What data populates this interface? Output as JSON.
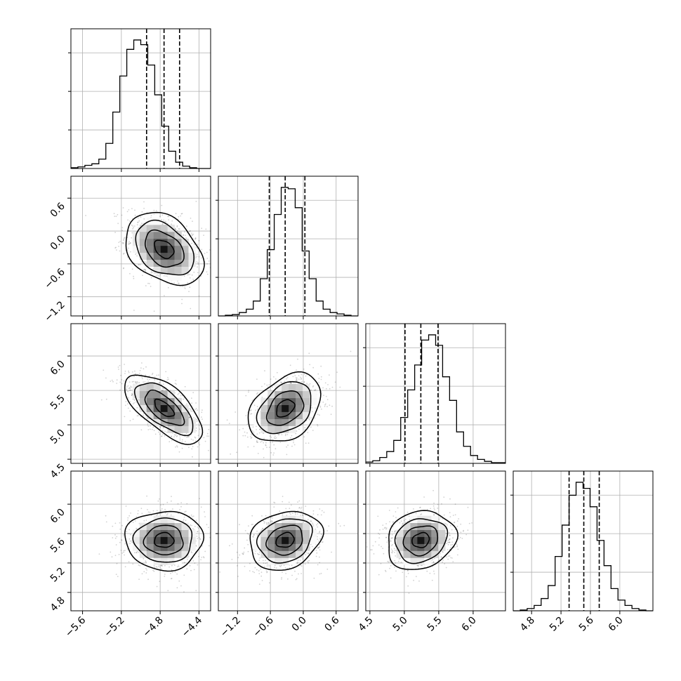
{
  "chart_data": {
    "type": "corner",
    "grid": true,
    "parameters": [
      {
        "index": 0,
        "range": [
          -5.72,
          -4.28
        ],
        "ticks": [
          -5.6,
          -5.2,
          -4.8,
          -4.4
        ],
        "tick_labels": [
          "−5.6",
          "−5.2",
          "−4.8",
          "−4.4"
        ],
        "mean": -4.76,
        "quantiles": [
          -4.94,
          -4.76,
          -4.6
        ]
      },
      {
        "index": 1,
        "range": [
          -1.55,
          1.0
        ],
        "ticks": [
          -1.2,
          -0.6,
          0.0,
          0.6
        ],
        "tick_labels": [
          "−1.2",
          "−0.6",
          "0.0",
          "0.6"
        ],
        "mean": -0.33,
        "quantiles": [
          -0.62,
          -0.33,
          0.03
        ]
      },
      {
        "index": 2,
        "range": [
          4.44,
          6.47
        ],
        "ticks": [
          4.5,
          5.0,
          5.5,
          6.0
        ],
        "tick_labels": [
          "4.5",
          "5.0",
          "5.5",
          "6.0"
        ],
        "mean": 5.24,
        "quantiles": [
          5.01,
          5.24,
          5.49
        ]
      },
      {
        "index": 3,
        "range": [
          4.55,
          6.45
        ],
        "ticks": [
          4.8,
          5.2,
          5.6,
          6.0
        ],
        "tick_labels": [
          "4.8",
          "5.2",
          "5.6",
          "6.0"
        ],
        "mean": 5.51,
        "quantiles": [
          5.31,
          5.51,
          5.72
        ]
      }
    ],
    "histograms": [
      {
        "param": 0,
        "bins": 20,
        "counts": [
          1,
          2,
          4,
          6,
          12,
          32,
          72,
          118,
          152,
          164,
          158,
          132,
          94,
          54,
          22,
          8,
          3,
          1,
          0,
          0
        ]
      },
      {
        "param": 1,
        "bins": 20,
        "counts": [
          0,
          1,
          2,
          5,
          10,
          22,
          55,
          98,
          150,
          190,
          188,
          160,
          96,
          55,
          22,
          10,
          5,
          3,
          1,
          0
        ]
      },
      {
        "param": 2,
        "bins": 20,
        "counts": [
          2,
          4,
          9,
          18,
          35,
          70,
          112,
          150,
          188,
          196,
          180,
          132,
          96,
          48,
          26,
          12,
          6,
          3,
          1,
          1
        ]
      },
      {
        "param": 3,
        "bins": 20,
        "counts": [
          0,
          1,
          3,
          7,
          16,
          33,
          71,
          112,
          151,
          168,
          160,
          136,
          92,
          59,
          29,
          14,
          7,
          3,
          1,
          0
        ]
      }
    ],
    "pairs": [
      {
        "x_param": 0,
        "y_param": 1,
        "center": [
          -4.76,
          -0.33
        ],
        "sd": [
          0.2,
          0.33
        ],
        "correlation": -0.35
      },
      {
        "x_param": 0,
        "y_param": 2,
        "center": [
          -4.76,
          5.24
        ],
        "sd": [
          0.2,
          0.25
        ],
        "correlation": -0.65
      },
      {
        "x_param": 1,
        "y_param": 2,
        "center": [
          -0.33,
          5.24
        ],
        "sd": [
          0.33,
          0.25
        ],
        "correlation": 0.35
      },
      {
        "x_param": 0,
        "y_param": 3,
        "center": [
          -4.76,
          5.51
        ],
        "sd": [
          0.2,
          0.2
        ],
        "correlation": 0.0
      },
      {
        "x_param": 1,
        "y_param": 3,
        "center": [
          -0.33,
          5.51
        ],
        "sd": [
          0.33,
          0.2
        ],
        "correlation": 0.2
      },
      {
        "x_param": 2,
        "y_param": 3,
        "center": [
          5.24,
          5.51
        ],
        "sd": [
          0.25,
          0.2
        ],
        "correlation": 0.15
      }
    ],
    "contour_levels_sigma": [
      0.5,
      1.0,
      1.5,
      2.0
    ]
  }
}
